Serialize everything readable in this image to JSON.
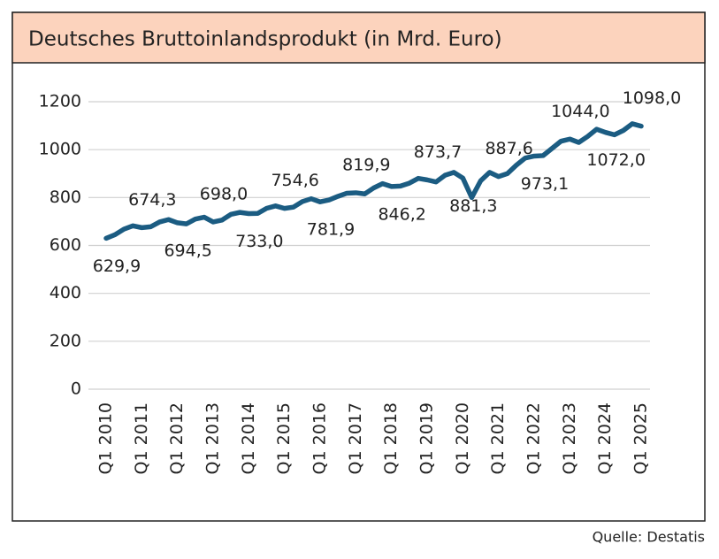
{
  "chart_data": {
    "type": "line",
    "title": "Deutsches Bruttoinlandsprodukt (in Mrd. Euro)",
    "source": "Quelle: Destatis",
    "categories": [
      "Q1 2010",
      null,
      null,
      null,
      "Q1 2011",
      null,
      null,
      null,
      "Q1 2012",
      null,
      null,
      null,
      "Q1 2013",
      null,
      null,
      null,
      "Q1 2014",
      null,
      null,
      null,
      "Q1 2015",
      null,
      null,
      null,
      "Q1 2016",
      null,
      null,
      null,
      "Q1 2017",
      null,
      null,
      null,
      "Q1 2018",
      null,
      null,
      null,
      "Q1 2019",
      null,
      null,
      null,
      "Q1 2020",
      null,
      null,
      null,
      "Q1 2021",
      null,
      null,
      null,
      "Q1 2022",
      null,
      null,
      null,
      "Q1 2023",
      null,
      null,
      null,
      "Q1 2024",
      null,
      null,
      null,
      "Q1 2025"
    ],
    "values": [
      629.9,
      645,
      668,
      682,
      674.3,
      678,
      698,
      708,
      694.5,
      690,
      710,
      718,
      698.0,
      706,
      730,
      738,
      733.0,
      734,
      755,
      765,
      754.6,
      760,
      783,
      795,
      781.9,
      790,
      805,
      818,
      819.9,
      815,
      840,
      858,
      846.2,
      848,
      860,
      880,
      873.7,
      865,
      893,
      905,
      881.3,
      800,
      870,
      905,
      887.6,
      900,
      935,
      965,
      973.1,
      975,
      1005,
      1035,
      1044.0,
      1030,
      1055,
      1085,
      1072.0,
      1062,
      1080,
      1108,
      1098.0
    ],
    "value_labels": [
      "629,9",
      null,
      null,
      null,
      "674,3",
      null,
      null,
      null,
      "694,5",
      null,
      null,
      null,
      "698,0",
      null,
      null,
      null,
      "733,0",
      null,
      null,
      null,
      "754,6",
      null,
      null,
      null,
      "781,9",
      null,
      null,
      null,
      "819,9",
      null,
      null,
      null,
      "846,2",
      null,
      null,
      null,
      "873,7",
      null,
      null,
      null,
      "881,3",
      null,
      null,
      null,
      "887,6",
      null,
      null,
      null,
      "973,1",
      null,
      null,
      null,
      "1044,0",
      null,
      null,
      null,
      "1072,0",
      null,
      null,
      null,
      "1098,0"
    ],
    "color": "#1b5c82",
    "ylim": [
      0,
      1200
    ],
    "yticks": [
      0,
      200,
      400,
      600,
      800,
      1000,
      1200
    ],
    "grid": true
  }
}
